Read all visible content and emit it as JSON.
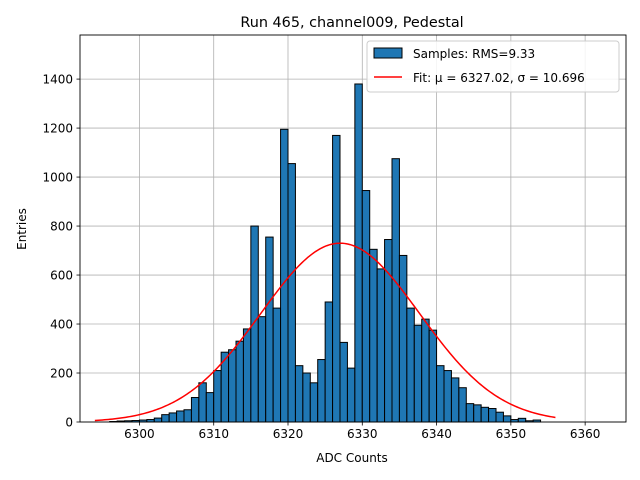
{
  "chart_data": {
    "type": "bar",
    "title": "Run 465, channel009, Pedestal",
    "xlabel": "ADC Counts",
    "ylabel": "Entries",
    "xlim": [
      6292,
      6365.5
    ],
    "ylim": [
      0,
      1580
    ],
    "xticks": [
      6300,
      6310,
      6320,
      6330,
      6340,
      6350,
      6360
    ],
    "yticks": [
      0,
      200,
      400,
      600,
      800,
      1000,
      1200,
      1400
    ],
    "grid": true,
    "legend_position": "top-right",
    "colors": {
      "bars": "#1f77b4",
      "bar_edge": "#000000",
      "fit": "#ff0000",
      "grid": "#b0b0b0"
    },
    "histogram": {
      "name": "Samples: RMS=9.33",
      "bin_width": 1,
      "bin_starts": [
        6294,
        6295,
        6296,
        6297,
        6298,
        6299,
        6300,
        6301,
        6302,
        6303,
        6304,
        6305,
        6306,
        6307,
        6308,
        6309,
        6310,
        6311,
        6312,
        6313,
        6314,
        6315,
        6316,
        6317,
        6318,
        6319,
        6320,
        6321,
        6322,
        6323,
        6324,
        6325,
        6326,
        6327,
        6328,
        6329,
        6330,
        6331,
        6332,
        6333,
        6334,
        6335,
        6336,
        6337,
        6338,
        6339,
        6340,
        6341,
        6342,
        6343,
        6344,
        6345,
        6346,
        6347,
        6348,
        6349,
        6350,
        6351,
        6352,
        6353,
        6354,
        6355
      ],
      "counts": [
        0,
        0,
        2,
        4,
        5,
        6,
        8,
        10,
        16,
        30,
        37,
        45,
        50,
        100,
        160,
        120,
        210,
        285,
        295,
        330,
        380,
        800,
        430,
        755,
        465,
        1195,
        1055,
        230,
        200,
        160,
        255,
        490,
        1170,
        325,
        220,
        1380,
        945,
        705,
        625,
        745,
        1075,
        680,
        465,
        395,
        420,
        375,
        230,
        210,
        180,
        140,
        75,
        70,
        60,
        55,
        40,
        25,
        10,
        15,
        5,
        8,
        0,
        0
      ]
    },
    "fit": {
      "name": "Fit: μ = 6327.02, σ = 10.696",
      "mu": 6327.02,
      "sigma": 10.696,
      "amplitude": 730,
      "x_range": [
        6294,
        6356
      ]
    }
  }
}
